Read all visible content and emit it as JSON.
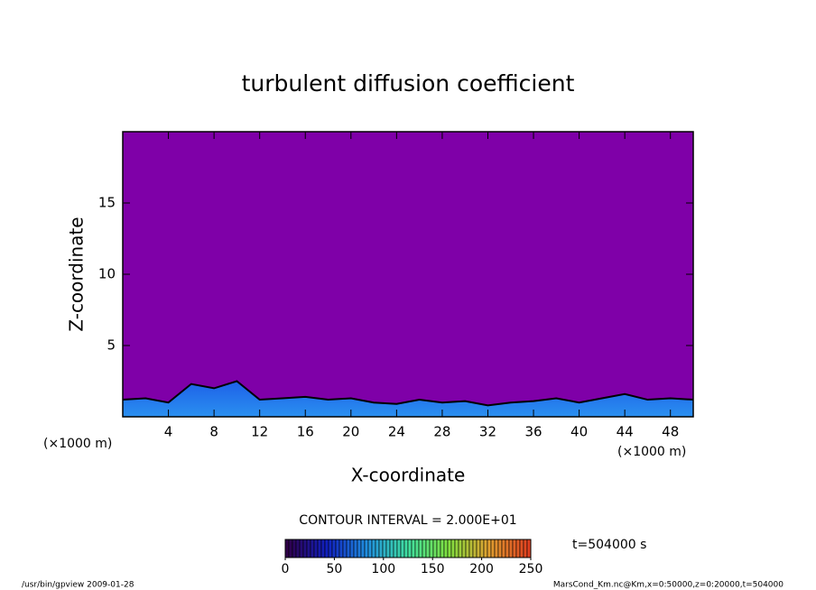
{
  "chart_data": {
    "type": "contour",
    "title": "turbulent diffusion coefficient",
    "x_label": "X-coordinate",
    "y_label": "Z-coordinate",
    "x_unit": "(×1000 m)",
    "y_unit": "(×1000 m)",
    "x": [
      0,
      2,
      4,
      6,
      8,
      10,
      12,
      14,
      16,
      18,
      20,
      22,
      24,
      26,
      28,
      30,
      32,
      34,
      36,
      38,
      40,
      42,
      44,
      46,
      48,
      50
    ],
    "values": [
      1.2,
      1.3,
      1.0,
      2.3,
      2.0,
      2.5,
      1.2,
      1.3,
      1.4,
      1.2,
      1.3,
      1.0,
      0.9,
      1.2,
      1.0,
      1.1,
      0.8,
      1.0,
      1.1,
      1.3,
      1.0,
      1.3,
      1.6,
      1.2,
      1.3,
      1.2
    ],
    "background_color": "#7f00a8",
    "layer_color": "#1e60e8",
    "xlim": [
      0,
      50
    ],
    "ylim": [
      0,
      20
    ],
    "xticks": [
      4,
      8,
      12,
      16,
      20,
      24,
      28,
      32,
      36,
      40,
      44,
      48
    ],
    "yticks": [
      5,
      10,
      15
    ],
    "contour_interval": "CONTOUR INTERVAL = 2.000E+01",
    "time_label": "t=504000 s",
    "colorbar": {
      "lim": [
        0,
        250
      ],
      "ticks": [
        0,
        50,
        100,
        150,
        200,
        250
      ],
      "colors": [
        "#30004a",
        "#1020c0",
        "#2090e0",
        "#40e0a0",
        "#80e040",
        "#e0a030",
        "#e04020"
      ]
    },
    "footer_left": "/usr/bin/gpview  2009-01-28",
    "footer_right": "MarsCond_Km.nc@Km,x=0:50000,z=0:20000,t=504000"
  }
}
